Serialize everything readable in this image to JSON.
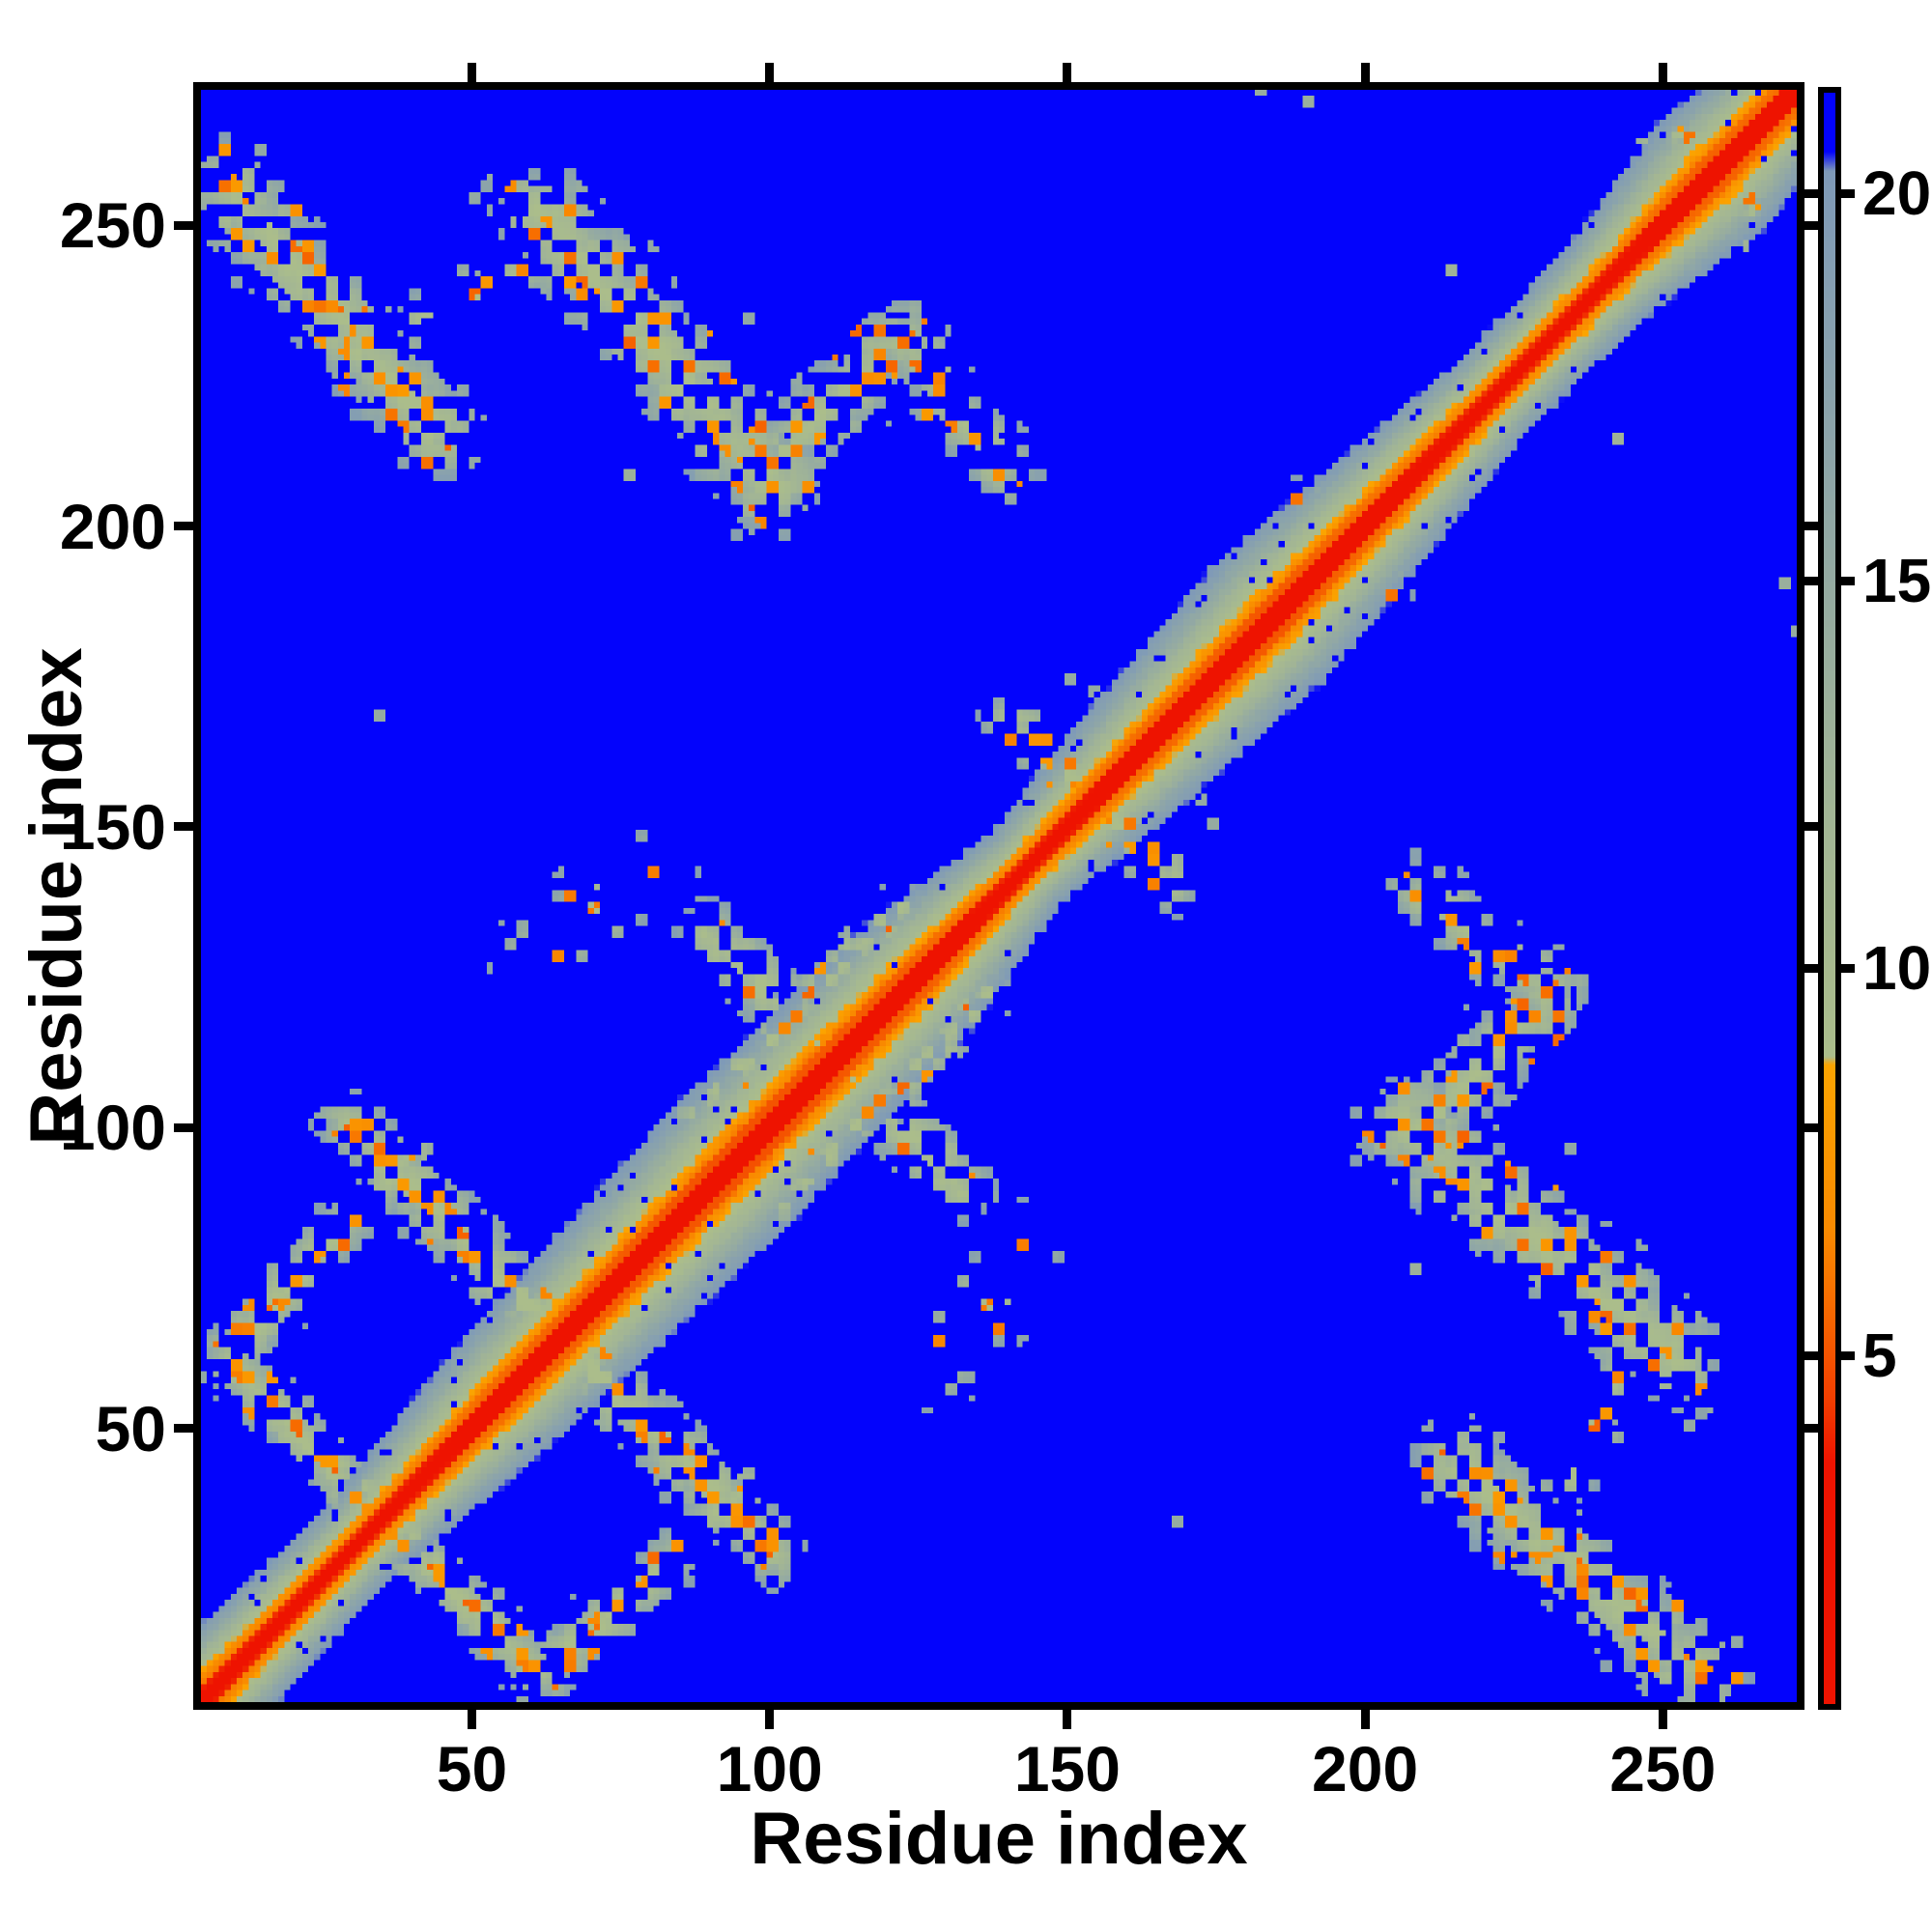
{
  "figure": {
    "background_color": "#ffffff",
    "frame_color": "#000000",
    "title": ""
  },
  "chart_data": {
    "type": "heatmap",
    "title": "",
    "xlabel": "Residue index",
    "ylabel": "Residue index",
    "x_range": [
      5,
      272
    ],
    "y_range": [
      5,
      272
    ],
    "x_ticks": [
      50,
      100,
      150,
      200,
      250
    ],
    "y_ticks": [
      50,
      100,
      150,
      200,
      250
    ],
    "grid": false,
    "symmetric": true,
    "legend_position": "none",
    "background_value": 22,
    "background_color": "#0303fc",
    "colormap": {
      "stops": [
        [
          0.5,
          "#ee1300"
        ],
        [
          3.6,
          "#ee1300"
        ],
        [
          4.4,
          "#f23d00"
        ],
        [
          5.4,
          "#f66300"
        ],
        [
          6.6,
          "#f98a00"
        ],
        [
          8.75,
          "#fba400"
        ],
        [
          8.85,
          "#abbd8b"
        ],
        [
          12.0,
          "#a2b595"
        ],
        [
          16.0,
          "#90a7a6"
        ],
        [
          20.3,
          "#7f9ab8"
        ],
        [
          20.55,
          "#0303fc"
        ],
        [
          22.0,
          "#0303fc"
        ]
      ]
    },
    "colorbar": {
      "orientation": "vertical",
      "position": "right",
      "vmin": 0.5,
      "vmax": 21.3,
      "ticks": [
        5,
        10,
        15,
        20
      ]
    },
    "diagonal": {
      "core_value": 1.5,
      "value_per_offset": 1.45,
      "checker_amplitude": 0.5,
      "width_profile": [
        [
          5,
          1.05
        ],
        [
          30,
          0.85
        ],
        [
          55,
          1.25
        ],
        [
          95,
          1.5
        ],
        [
          125,
          1.35
        ],
        [
          143,
          0.9
        ],
        [
          160,
          1.2
        ],
        [
          185,
          1.45
        ],
        [
          205,
          1.15
        ],
        [
          222,
          0.9
        ],
        [
          240,
          0.95
        ],
        [
          258,
          1.35
        ],
        [
          272,
          1.15
        ]
      ]
    },
    "contact_clusters": [
      {
        "name": "nterm-cterm-zigzag-1",
        "from": [
          8,
          257
        ],
        "to": [
          44,
          216
        ],
        "halfwidth": 8,
        "density": 0.7
      },
      {
        "name": "nterm-cterm-zigzag-2",
        "from": [
          42,
          235
        ],
        "to": [
          60,
          243
        ],
        "halfwidth": 5,
        "density": 0.28
      },
      {
        "name": "nterm-cterm-zigzag-3",
        "from": [
          62,
          252
        ],
        "to": [
          100,
          207
        ],
        "halfwidth": 9,
        "density": 0.72
      },
      {
        "name": "nterm-cterm-zigzag-4",
        "from": [
          98,
          208
        ],
        "to": [
          122,
          231
        ],
        "halfwidth": 7,
        "density": 0.65
      },
      {
        "name": "nterm-cterm-zigzag-5",
        "from": [
          122,
          231
        ],
        "to": [
          139,
          210
        ],
        "halfwidth": 6,
        "density": 0.55
      },
      {
        "name": "nterm-sheet-anti-1",
        "from": [
          10,
          60
        ],
        "to": [
          60,
          10
        ],
        "halfwidth": 5,
        "density": 0.7
      },
      {
        "name": "nterm-sheet-anti-2",
        "from": [
          30,
          100
        ],
        "to": [
          100,
          30
        ],
        "halfwidth": 6,
        "density": 0.65
      },
      {
        "name": "nterm-sheet-parallel",
        "from": [
          9,
          62
        ],
        "to": [
          40,
          96
        ],
        "halfwidth": 5,
        "density": 0.55
      },
      {
        "name": "mid-domain-anti",
        "from": [
          90,
          132
        ],
        "to": [
          132,
          90
        ],
        "halfwidth": 6,
        "density": 0.55
      },
      {
        "name": "mid-domain-parallel",
        "from": [
          88,
          102
        ],
        "to": [
          122,
          137
        ],
        "halfwidth": 4,
        "density": 0.45
      },
      {
        "name": "mid-domain-scatter",
        "from": [
          60,
          128
        ],
        "to": [
          80,
          144
        ],
        "halfwidth": 7,
        "density": 0.15
      },
      {
        "name": "cluster-150-anti",
        "from": [
          140,
          168
        ],
        "to": [
          168,
          140
        ],
        "halfwidth": 5,
        "density": 0.4
      },
      {
        "name": "cluster-195-anti",
        "from": [
          188,
          205
        ],
        "to": [
          205,
          188
        ],
        "halfwidth": 3,
        "density": 0.35
      },
      {
        "name": "cterm-corner-dots",
        "from": [
          246,
          263
        ],
        "to": [
          256,
          266
        ],
        "halfwidth": 2,
        "density": 0.35
      }
    ],
    "cluster_speckle": {
      "hole_fraction": 0.13,
      "orange_fraction": 0.27,
      "orange_value_range": [
        5.3,
        7.9
      ],
      "base_value": 9.2,
      "edge_value_gain": 8.0,
      "value_noise": 4.0
    }
  }
}
